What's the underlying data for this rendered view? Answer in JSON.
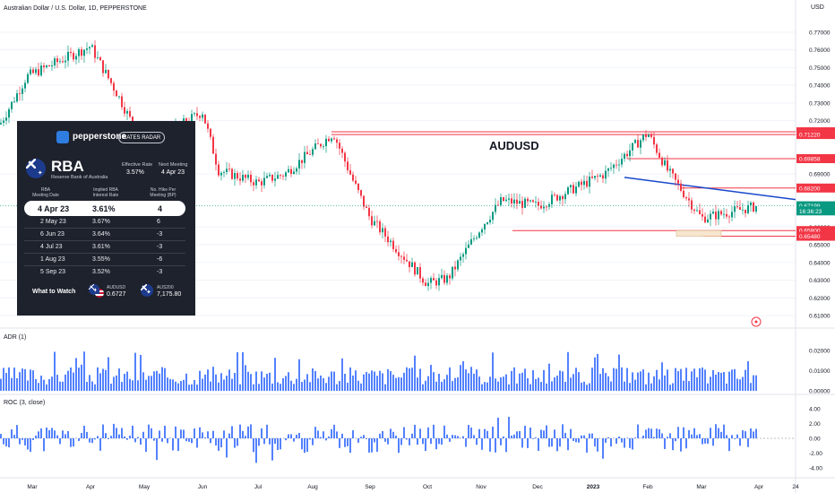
{
  "header": {
    "symbol_line": "Australian Dollar / U.S. Dollar, 1D, PEPPERSTONE",
    "currency": "USD",
    "chart_label": "AUDUSD"
  },
  "axes": {
    "price_ticks": [
      "0.77000",
      "0.76000",
      "0.75000",
      "0.74000",
      "0.73000",
      "0.72000",
      "0.69000",
      "0.66000",
      "0.65000",
      "0.64000",
      "0.63000",
      "0.62000",
      "0.61000"
    ],
    "adr_ticks": [
      "0.02000",
      "0.01000",
      "0.00000"
    ],
    "roc_ticks": [
      "4.00",
      "2.00",
      "0.00",
      "-2.00",
      "-4.00"
    ],
    "x_ticks": [
      "Mar",
      "Apr",
      "May",
      "Jun",
      "Jul",
      "Aug",
      "Sep",
      "Oct",
      "Nov",
      "Dec",
      "2023",
      "Feb",
      "Mar",
      "Apr",
      "24"
    ]
  },
  "price_labels": [
    {
      "text": "0.71376",
      "price": 0.71376,
      "color": "#f23645"
    },
    {
      "text": "0.71220",
      "price": 0.7122,
      "color": "#f23645"
    },
    {
      "text": "0.69858",
      "price": 0.69858,
      "color": "#f23645"
    },
    {
      "text": "0.68200",
      "price": 0.682,
      "color": "#f23645"
    },
    {
      "text": "0.67199",
      "price": 0.67199,
      "color": "#089981"
    },
    {
      "text": "16:36:23",
      "price": 0.6691,
      "color": "#089981"
    },
    {
      "text": "0.65800",
      "price": 0.658,
      "color": "#f23645"
    },
    {
      "text": "0.65480",
      "price": 0.6548,
      "color": "#f23645"
    }
  ],
  "indicators": {
    "adr_title": "ADR (1)",
    "roc_title": "ROC (3, close)"
  },
  "rba_panel": {
    "brand": "pepperstone",
    "button": "RATES RADAR",
    "title": "RBA",
    "subtitle": "Reserve Bank of Australia",
    "effective_label": "Effective Rate",
    "effective_value": "3.57%",
    "next_label": "Next Meeting",
    "next_value": "4 Apr 23",
    "col1": "RBA\nMeeting Date",
    "col2": "Implied RBA\nInterest Rate",
    "col3": "No. Hike Per\nMeeting (BP)",
    "rows": [
      {
        "date": "4 Apr 23",
        "rate": "3.61%",
        "hike": "4"
      },
      {
        "date": "2 May 23",
        "rate": "3.67%",
        "hike": "6"
      },
      {
        "date": "6 Jun 23",
        "rate": "3.64%",
        "hike": "-3"
      },
      {
        "date": "4 Jul 23",
        "rate": "3.61%",
        "hike": "-3"
      },
      {
        "date": "1 Aug 23",
        "rate": "3.55%",
        "hike": "-6"
      },
      {
        "date": "5 Sep 23",
        "rate": "3.52%",
        "hike": "-3"
      }
    ],
    "what_to_watch": "What to Watch",
    "quote1_label": "AUDUSD",
    "quote1_value": "0.6727",
    "quote2_label": "AUS200",
    "quote2_value": "7,175.80"
  },
  "chart_data": {
    "type": "candlestick",
    "title": "AUDUSD",
    "symbol": "Australian Dollar / U.S. Dollar, 1D, PEPPERSTONE",
    "price_range": [
      0.605,
      0.778
    ],
    "months": [
      "Mar",
      "Apr",
      "May",
      "Jun",
      "Jul",
      "Aug",
      "Sep",
      "Oct",
      "Nov",
      "Dec",
      "2023",
      "Feb",
      "Mar",
      "Apr"
    ],
    "monthly_close_path": [
      {
        "month": "Mar 22",
        "price": 0.718
      },
      {
        "month": "Mar 22",
        "price": 0.745
      },
      {
        "month": "Apr 22",
        "price": 0.762
      },
      {
        "month": "Apr 22",
        "price": 0.735
      },
      {
        "month": "May 22",
        "price": 0.705
      },
      {
        "month": "Jun 22",
        "price": 0.725
      },
      {
        "month": "Jun 22",
        "price": 0.692
      },
      {
        "month": "Jul 22",
        "price": 0.685
      },
      {
        "month": "Jul 22",
        "price": 0.69
      },
      {
        "month": "Aug 22",
        "price": 0.713
      },
      {
        "month": "Aug 22",
        "price": 0.685
      },
      {
        "month": "Sep 22",
        "price": 0.665
      },
      {
        "month": "Oct 22",
        "price": 0.628
      },
      {
        "month": "Oct 22",
        "price": 0.631
      },
      {
        "month": "Nov 22",
        "price": 0.66
      },
      {
        "month": "Nov 22",
        "price": 0.675
      },
      {
        "month": "Dec 22",
        "price": 0.672
      },
      {
        "month": "2023",
        "price": 0.69
      },
      {
        "month": "Feb 23",
        "price": 0.713
      },
      {
        "month": "Feb 23",
        "price": 0.692
      },
      {
        "month": "Mar 23",
        "price": 0.665
      },
      {
        "month": "Mar 23",
        "price": 0.672
      }
    ],
    "horizontal_levels": [
      0.71376,
      0.7122,
      0.69858,
      0.682,
      0.658,
      0.6548
    ],
    "trendline": [
      {
        "month": "Feb 23",
        "price": 0.688
      },
      {
        "month": "Apr 23",
        "price": 0.678
      }
    ],
    "last_price": 0.67199,
    "adr_range": [
      0,
      0.025
    ],
    "roc_range": [
      -5,
      5
    ]
  }
}
